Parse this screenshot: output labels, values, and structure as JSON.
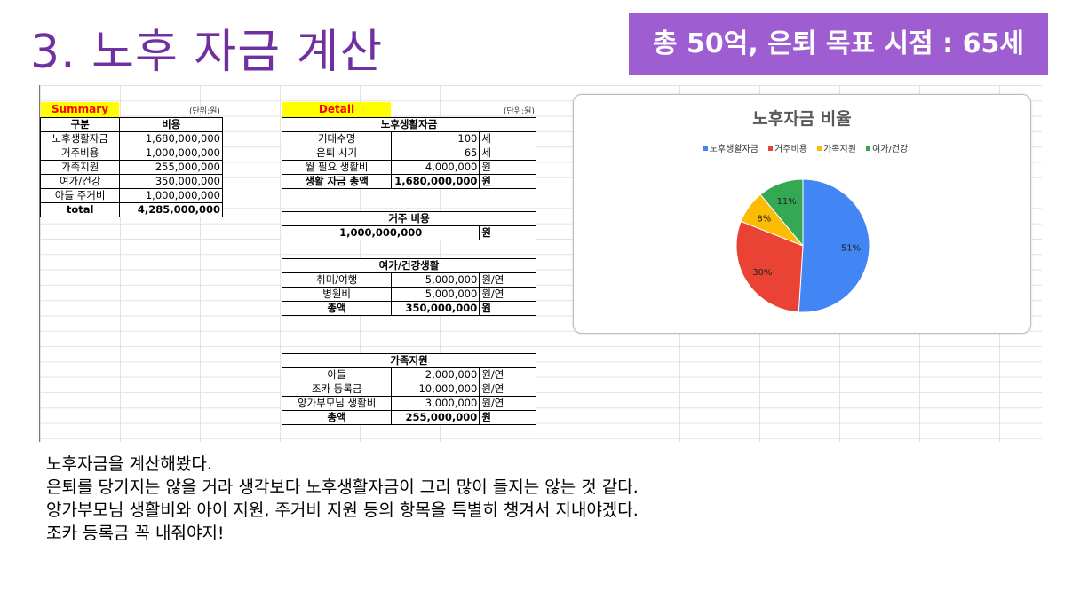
{
  "title": "3. 노후 자금 계산",
  "goal_banner": "총 50억, 은퇴 목표 시점  : 65세",
  "summary": {
    "header": "Summary",
    "unit": "(단위:원)",
    "columns": [
      "구분",
      "비용"
    ],
    "rows": [
      [
        "노후생활자금",
        "1,680,000,000"
      ],
      [
        "거주비용",
        "1,000,000,000"
      ],
      [
        "가족지원",
        "255,000,000"
      ],
      [
        "여가/건강",
        "350,000,000"
      ],
      [
        "아들 주거비",
        "1,000,000,000"
      ]
    ],
    "total": [
      "total",
      "4,285,000,000"
    ]
  },
  "detail": {
    "header": "Detail",
    "unit": "(단위:원)",
    "living": {
      "title": "노후생활자금",
      "rows": [
        [
          "기대수명",
          "100",
          "세"
        ],
        [
          "은퇴 시기",
          "65",
          "세"
        ],
        [
          "월 필요 생활비",
          "4,000,000",
          "원"
        ]
      ],
      "total": [
        "생활 자금 총액",
        "1,680,000,000",
        "원"
      ]
    },
    "housing": {
      "title": "거주 비용",
      "value": "1,000,000,000",
      "unit": "원"
    },
    "leisure": {
      "title": "여가/건강생활",
      "rows": [
        [
          "취미/여행",
          "5,000,000",
          "원/연"
        ],
        [
          "병원비",
          "5,000,000",
          "원/연"
        ]
      ],
      "total": [
        "총액",
        "350,000,000",
        "원"
      ]
    },
    "family": {
      "title": "가족지원",
      "rows": [
        [
          "아들",
          "2,000,000",
          "원/연"
        ],
        [
          "조카 등록금",
          "10,000,000",
          "원/연"
        ],
        [
          "양가부모님 생활비",
          "3,000,000",
          "원/연"
        ]
      ],
      "total": [
        "총액",
        "255,000,000",
        "원"
      ]
    }
  },
  "chart_data": {
    "type": "pie",
    "title": "노후자금 비율",
    "categories": [
      "노후생활자금",
      "거주비용",
      "가족지원",
      "여가/건강"
    ],
    "values": [
      51,
      30,
      8,
      11
    ],
    "labels": [
      "51%",
      "30%",
      "8%",
      "11%"
    ],
    "colors": [
      "#4285f4",
      "#ea4335",
      "#fbbc04",
      "#34a853"
    ],
    "legend": "top"
  },
  "notes": [
    "노후자금을 계산해봤다.",
    "은퇴를 당기지는 않을 거라 생각보다 노후생활자금이 그리 많이 들지는 않는 것 같다.",
    "양가부모님 생활비와 아이 지원, 주거비 지원 등의 항목을 특별히 챙겨서 지내야겠다.",
    "조카 등록금 꼭 내줘야지!"
  ]
}
